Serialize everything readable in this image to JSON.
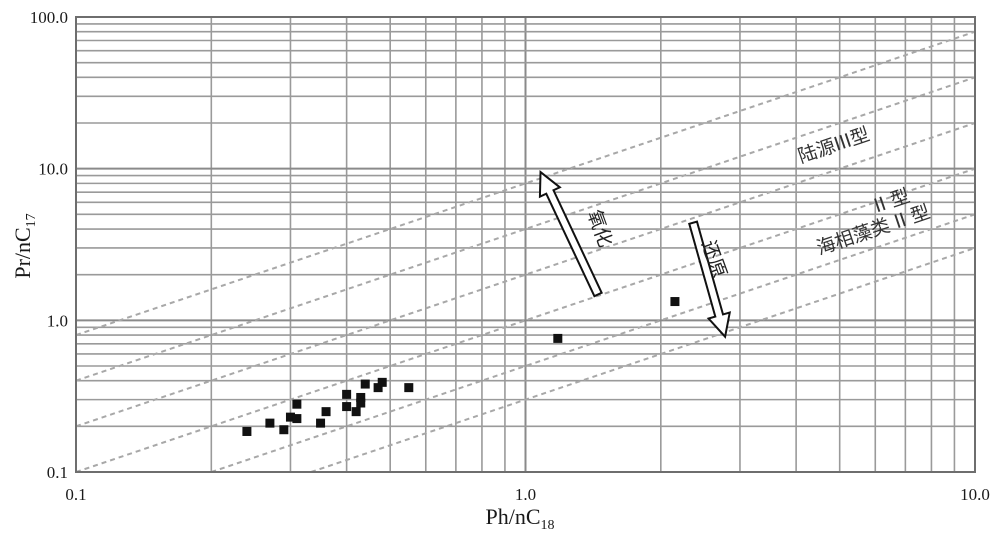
{
  "chart_data": {
    "type": "scatter",
    "xscale": "log",
    "yscale": "log",
    "xlim": [
      0.1,
      10
    ],
    "ylim": [
      0.1,
      100
    ],
    "grid": true,
    "x_ticks": [
      "0.1",
      "1.0",
      "10.0"
    ],
    "y_ticks": [
      "0.1",
      "1.0",
      "10.0",
      "100.0"
    ],
    "xlabel_main": "Ph/nC",
    "xlabel_sub": "18",
    "ylabel_main": "Pr/nC",
    "ylabel_sub": "17",
    "reference_line_ratios": [
      8,
      4,
      2,
      1,
      0.5,
      0.3
    ],
    "points": [
      {
        "x": 0.24,
        "y": 0.185
      },
      {
        "x": 0.27,
        "y": 0.21
      },
      {
        "x": 0.29,
        "y": 0.19
      },
      {
        "x": 0.3,
        "y": 0.23
      },
      {
        "x": 0.31,
        "y": 0.28
      },
      {
        "x": 0.31,
        "y": 0.225
      },
      {
        "x": 0.35,
        "y": 0.21
      },
      {
        "x": 0.36,
        "y": 0.25
      },
      {
        "x": 0.4,
        "y": 0.325
      },
      {
        "x": 0.4,
        "y": 0.27
      },
      {
        "x": 0.42,
        "y": 0.25
      },
      {
        "x": 0.43,
        "y": 0.31
      },
      {
        "x": 0.43,
        "y": 0.285
      },
      {
        "x": 0.44,
        "y": 0.38
      },
      {
        "x": 0.47,
        "y": 0.36
      },
      {
        "x": 0.48,
        "y": 0.39
      },
      {
        "x": 0.55,
        "y": 0.36
      },
      {
        "x": 1.18,
        "y": 0.76
      },
      {
        "x": 2.15,
        "y": 1.33
      }
    ],
    "annotations": {
      "terrestrial_iii": "陆源III型",
      "type_ii": "II 型",
      "marine_algae_ii": "海相藻类 II 型",
      "oxidation": "氧化",
      "reduction": "还原"
    }
  }
}
